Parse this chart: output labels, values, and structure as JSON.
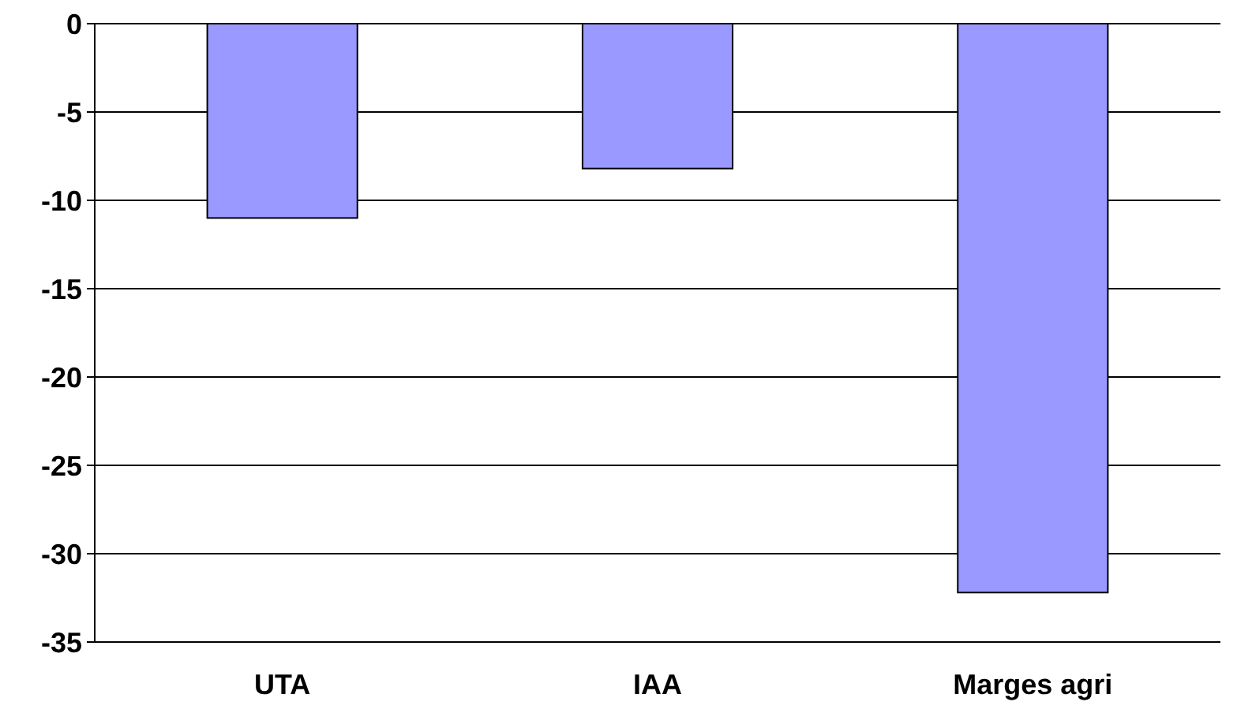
{
  "chart_data": {
    "type": "bar",
    "categories": [
      "UTA",
      "IAA",
      "Marges agri"
    ],
    "values": [
      -11,
      -8.2,
      -32.2
    ],
    "color": "#9999ff",
    "ylim": [
      -35,
      0
    ],
    "yticks": [
      0,
      -5,
      -10,
      -15,
      -20,
      -25,
      -30,
      -35
    ],
    "grid": "y"
  }
}
